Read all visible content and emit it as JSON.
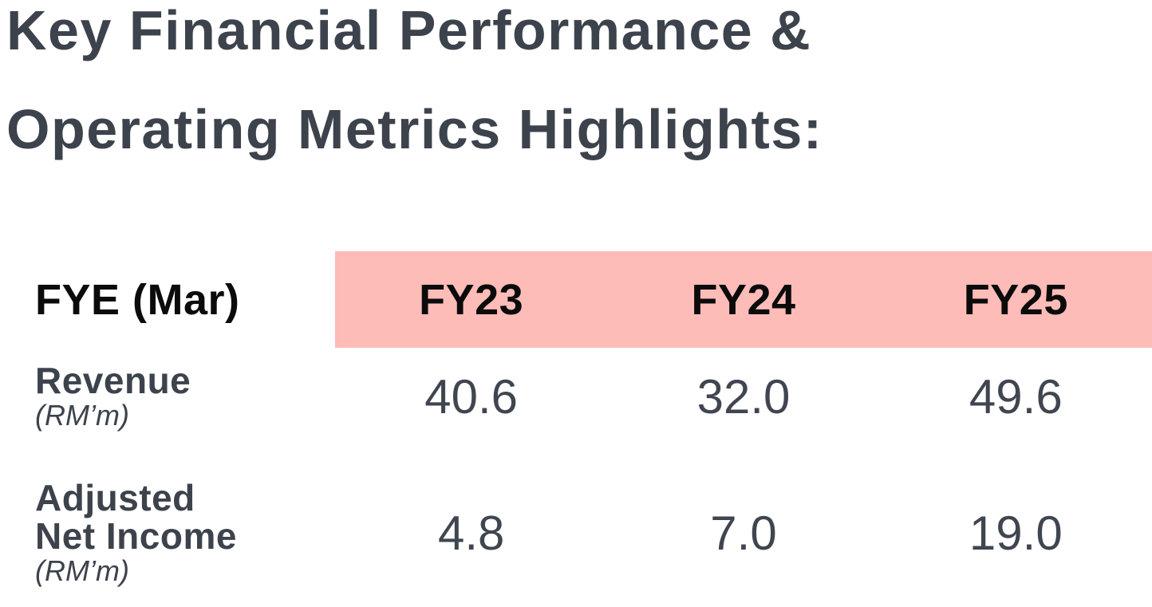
{
  "title": {
    "line1": "Key Financial Performance &",
    "line2": "Operating Metrics Highlights:"
  },
  "table": {
    "header": {
      "label": "FYE (Mar)",
      "columns": [
        "FY23",
        "FY24",
        "FY25"
      ]
    },
    "rows": [
      {
        "name_lines": [
          "Revenue"
        ],
        "unit": "(RM’m)",
        "values": [
          "40.6",
          "32.0",
          "49.6"
        ]
      },
      {
        "name_lines": [
          "Adjusted",
          "Net Income"
        ],
        "unit": "(RM’m)",
        "values": [
          "4.8",
          "7.0",
          "19.0"
        ]
      }
    ]
  },
  "colors": {
    "background": "#ffffff",
    "title_text": "#3d434c",
    "header_text": "#0b0b0b",
    "header_pink": "#fdbcb8",
    "header_label_bg": "#ffffff",
    "value_text": "#3f4650"
  },
  "chart_data": {
    "type": "table",
    "title": "Key Financial Performance & Operating Metrics Highlights:",
    "categories": [
      "FY23",
      "FY24",
      "FY25"
    ],
    "row_header": "FYE (Mar)",
    "series": [
      {
        "name": "Revenue (RM'm)",
        "values": [
          40.6,
          32.0,
          49.6
        ]
      },
      {
        "name": "Adjusted Net Income (RM'm)",
        "values": [
          4.8,
          7.0,
          19.0
        ]
      }
    ],
    "units": "RM million",
    "fiscal_year_end": "March"
  }
}
